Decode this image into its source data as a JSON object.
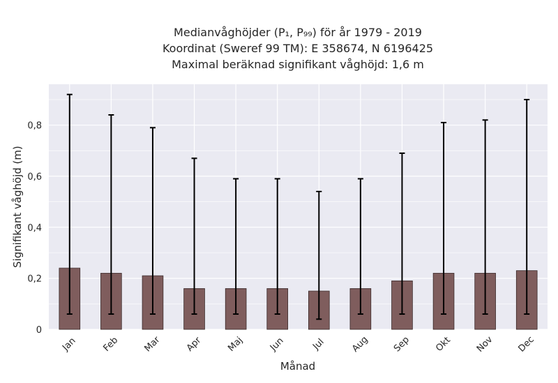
{
  "chart_data": {
    "type": "bar",
    "title_lines": [
      "Medianvåghöjder (P₁, P₉₉) för år 1979 - 2019",
      "Koordinat (Sweref 99 TM): E 358674, N 6196425",
      "Maximal beräknad signifikant våghöjd: 1,6 m"
    ],
    "xlabel": "Månad",
    "ylabel": "Signifikant våghöjd (m)",
    "categories": [
      "Jan",
      "Feb",
      "Mar",
      "Apr",
      "Maj",
      "Jun",
      "Jul",
      "Aug",
      "Sep",
      "Okt",
      "Nov",
      "Dec"
    ],
    "values": [
      0.24,
      0.22,
      0.21,
      0.16,
      0.16,
      0.16,
      0.15,
      0.16,
      0.19,
      0.22,
      0.22,
      0.23
    ],
    "error_low": [
      0.06,
      0.06,
      0.06,
      0.06,
      0.06,
      0.06,
      0.04,
      0.06,
      0.06,
      0.06,
      0.06,
      0.06
    ],
    "error_high": [
      0.92,
      0.84,
      0.79,
      0.67,
      0.59,
      0.59,
      0.54,
      0.59,
      0.69,
      0.81,
      0.82,
      0.9
    ],
    "ylim": [
      0,
      0.96
    ],
    "y_ticks": [
      0,
      0.2,
      0.4,
      0.6,
      0.8
    ],
    "y_tick_labels": [
      "0",
      "0,2",
      "0,4",
      "0,6",
      "0,8"
    ],
    "grid": true,
    "colors": {
      "bar": "#7f5d5d",
      "bar_edge": "#3a2a2a",
      "error": "#000000",
      "background": "#eaeaf2",
      "grid": "#ffffff"
    }
  }
}
